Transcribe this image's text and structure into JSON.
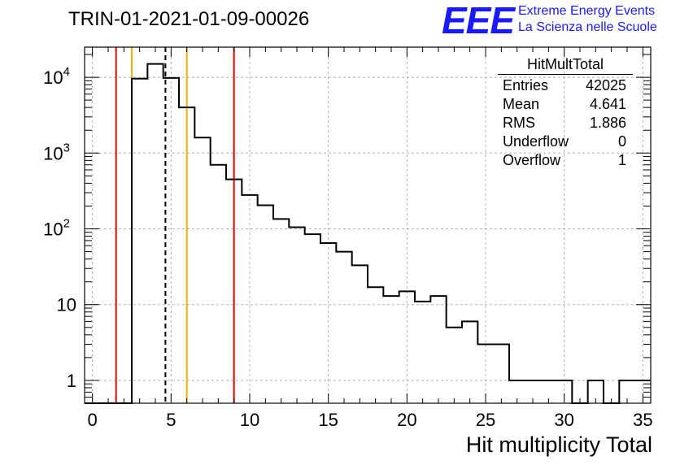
{
  "header": {
    "title": "TRIN-01-2021-01-09-00026",
    "logo_text": "EEE",
    "logo_line1": "Extreme Energy Events",
    "logo_line2": "La Scienza nelle Scuole"
  },
  "stats": {
    "name": "HitMultTotal",
    "rows": [
      {
        "label": "Entries",
        "value": "42025"
      },
      {
        "label": "Mean",
        "value": "4.641"
      },
      {
        "label": "RMS",
        "value": "1.886"
      },
      {
        "label": "Underflow",
        "value": "0"
      },
      {
        "label": "Overflow",
        "value": "1"
      }
    ]
  },
  "chart_data": {
    "type": "histogram",
    "xlabel": "Hit multiplicity Total",
    "ylabel": "",
    "xlim": [
      -0.5,
      35.5
    ],
    "ylim": [
      0.5,
      25000
    ],
    "yscale": "log",
    "grid": true,
    "bin_width": 1,
    "bin_edges_start": -0.5,
    "x_ticks": [
      0,
      5,
      10,
      15,
      20,
      25,
      30,
      35
    ],
    "y_ticks": [
      {
        "value": 1,
        "label": "1"
      },
      {
        "value": 10,
        "label": "10"
      },
      {
        "value": 100,
        "label": "10",
        "exp": "2"
      },
      {
        "value": 1000,
        "label": "10",
        "exp": "3"
      },
      {
        "value": 10000,
        "label": "10",
        "exp": "4"
      }
    ],
    "counts": [
      0,
      0,
      0,
      9600,
      15000,
      9800,
      4000,
      1600,
      700,
      450,
      280,
      205,
      135,
      105,
      85,
      65,
      50,
      33,
      17,
      13,
      15,
      11,
      13,
      5,
      6,
      3,
      3,
      1,
      1,
      1,
      1,
      0,
      1,
      0,
      1,
      1
    ],
    "vertical_lines": [
      {
        "x": 1.5,
        "color": "#e00000",
        "style": "solid"
      },
      {
        "x": 2.5,
        "color": "#f0b400",
        "style": "solid"
      },
      {
        "x": 4.641,
        "color": "#000000",
        "style": "dashed"
      },
      {
        "x": 6.0,
        "color": "#f0b400",
        "style": "solid"
      },
      {
        "x": 9.0,
        "color": "#e00000",
        "style": "solid"
      }
    ]
  }
}
